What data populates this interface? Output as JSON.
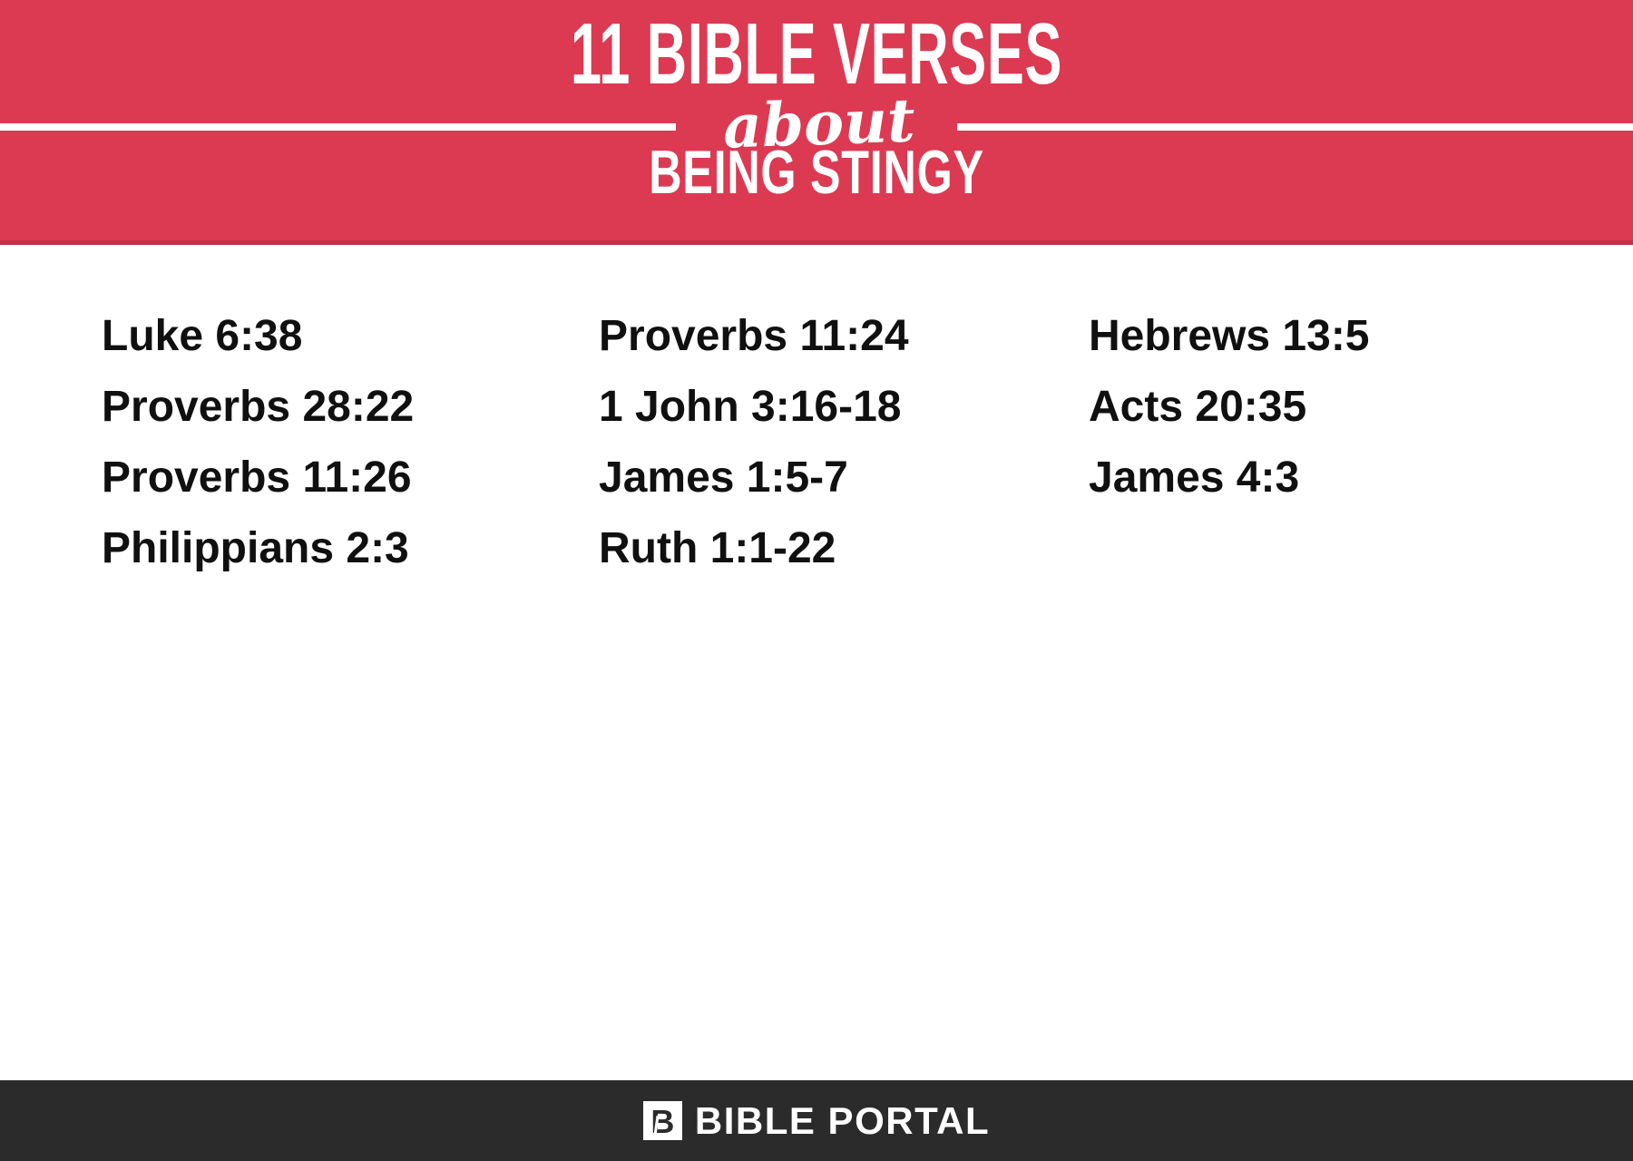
{
  "banner": {
    "title": "11 BIBLE VERSES",
    "connector_word": "about",
    "subtitle": "BEING STINGY",
    "bg_color": "#dc3a52",
    "bottom_edge_color": "#c03048",
    "text_color": "#ffffff",
    "divider_line_color": "#ffffff"
  },
  "verses": {
    "text_color": "#101010",
    "columns": [
      {
        "items": [
          "Luke 6:38",
          "Proverbs 28:22",
          "Proverbs 11:26",
          "Philippians 2:3"
        ]
      },
      {
        "items": [
          "Proverbs 11:24",
          "1 John 3:16-18",
          "James 1:5-7",
          "Ruth 1:1-22"
        ]
      },
      {
        "items": [
          "Hebrews 13:5",
          "Acts 20:35",
          "James 4:3"
        ]
      }
    ]
  },
  "footer": {
    "bg_color": "#2b2b2b",
    "logo_letter": "B",
    "brand": "BIBLE PORTAL",
    "text_color": "#ffffff"
  }
}
